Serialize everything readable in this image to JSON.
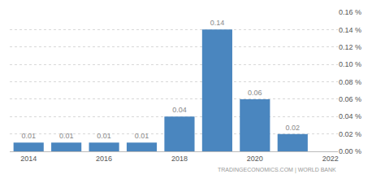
{
  "chart_data": {
    "type": "bar",
    "x": [
      2014,
      2015,
      2016,
      2017,
      2018,
      2019,
      2020,
      2021
    ],
    "values": [
      0.01,
      0.01,
      0.01,
      0.01,
      0.04,
      0.14,
      0.06,
      0.02
    ],
    "color": "#4a86bf",
    "data_labels": true,
    "xlim": [
      2013.5,
      2022.2
    ],
    "xticks": [
      2014,
      2016,
      2018,
      2020,
      2022
    ],
    "ylim": [
      0,
      0.16
    ],
    "yticks": [
      {
        "value": 0,
        "label": "0.00 %"
      },
      {
        "value": 0.02,
        "label": "0.02 %"
      },
      {
        "value": 0.04,
        "label": "0.04 %"
      },
      {
        "value": 0.06,
        "label": "0.06 %"
      },
      {
        "value": 0.08,
        "label": "0.08 %"
      },
      {
        "value": 0.1,
        "label": "0.10 %"
      },
      {
        "value": 0.12,
        "label": "0.12 %"
      },
      {
        "value": 0.14,
        "label": "0.14 %"
      },
      {
        "value": 0.16,
        "label": "0.16 %"
      }
    ],
    "grid": true,
    "annotations": [
      "TRADINGECONOMICS.COM | WORLD BANK"
    ]
  }
}
